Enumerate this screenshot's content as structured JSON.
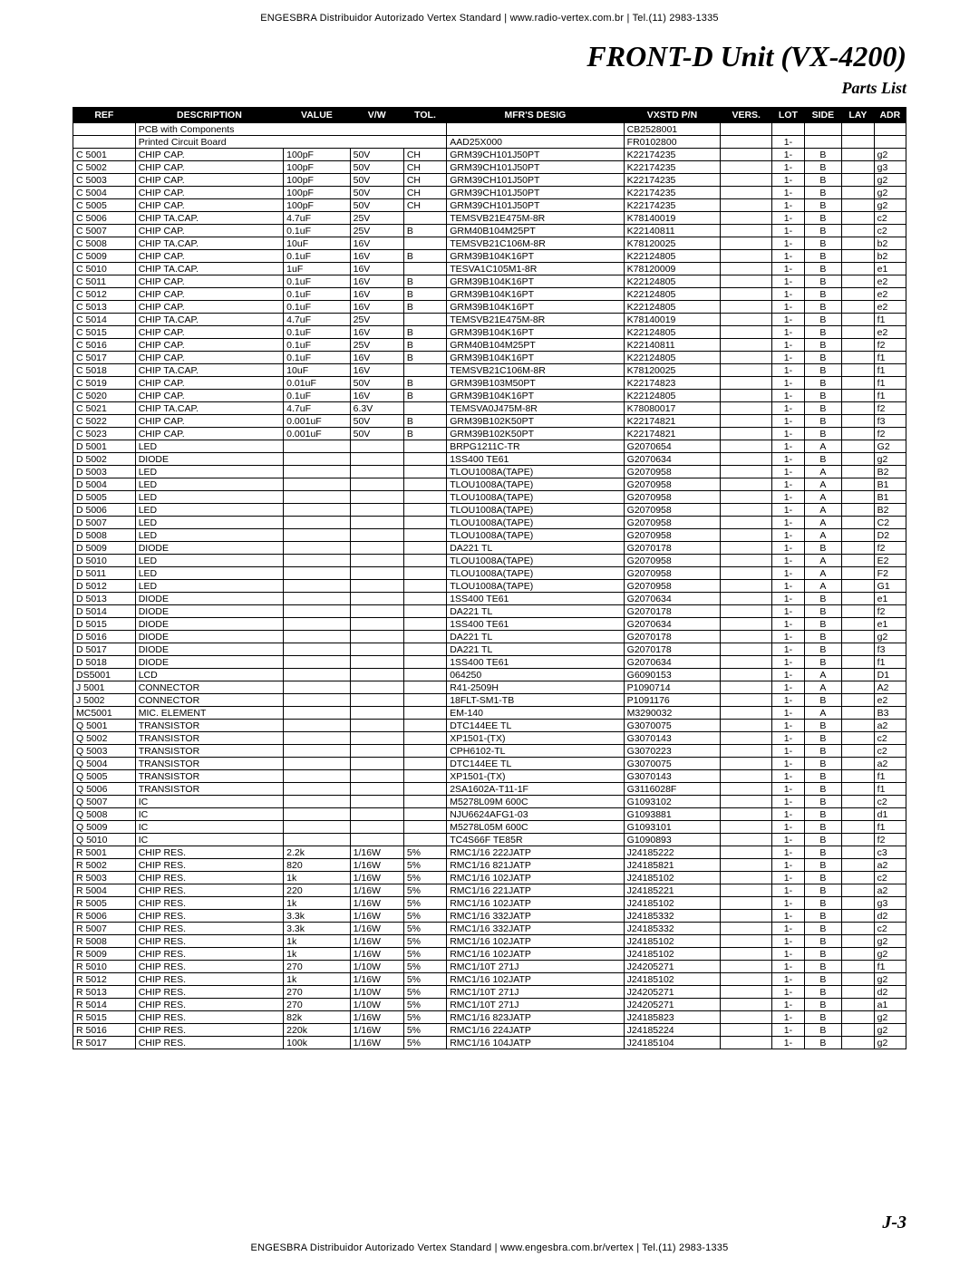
{
  "header_text": "ENGESBRA Distribuidor Autorizado Vertex Standard   |   www.radio-vertex.com.br   |   Tel.(11) 2983-1335",
  "footer_text": "ENGESBRA Distribuidor Autorizado Vertex Standard   |   www.engesbra.com.br/vertex   |   Tel.(11) 2983-1335",
  "title": "FRONT-D Unit (VX-4200)",
  "subtitle": "Parts List",
  "page_number": "J-3",
  "columns": [
    "REF",
    "DESCRIPTION",
    "VALUE",
    "V/W",
    "TOL.",
    "MFR'S DESIG",
    "VXSTD P/N",
    "VERS.",
    "LOT",
    "SIDE",
    "LAY",
    "ADR"
  ],
  "section1": {
    "desc": "PCB with Components",
    "pn": "CB2528001"
  },
  "section2": {
    "desc": "Printed Circuit Board",
    "mfr": "AAD25X000",
    "pn": "FR0102800",
    "lot": "1-"
  },
  "rows": [
    [
      "C 5001",
      "CHIP CAP.",
      "100pF",
      "50V",
      "CH",
      "GRM39CH101J50PT",
      "K22174235",
      "",
      "1-",
      "B",
      "",
      "g2"
    ],
    [
      "C 5002",
      "CHIP CAP.",
      "100pF",
      "50V",
      "CH",
      "GRM39CH101J50PT",
      "K22174235",
      "",
      "1-",
      "B",
      "",
      "g3"
    ],
    [
      "C 5003",
      "CHIP CAP.",
      "100pF",
      "50V",
      "CH",
      "GRM39CH101J50PT",
      "K22174235",
      "",
      "1-",
      "B",
      "",
      "g2"
    ],
    [
      "C 5004",
      "CHIP CAP.",
      "100pF",
      "50V",
      "CH",
      "GRM39CH101J50PT",
      "K22174235",
      "",
      "1-",
      "B",
      "",
      "g2"
    ],
    [
      "C 5005",
      "CHIP CAP.",
      "100pF",
      "50V",
      "CH",
      "GRM39CH101J50PT",
      "K22174235",
      "",
      "1-",
      "B",
      "",
      "g2"
    ],
    [
      "C 5006",
      "CHIP TA.CAP.",
      "4.7uF",
      "25V",
      "",
      "TEMSVB21E475M-8R",
      "K78140019",
      "",
      "1-",
      "B",
      "",
      "c2"
    ],
    [
      "C 5007",
      "CHIP CAP.",
      "0.1uF",
      "25V",
      "B",
      "GRM40B104M25PT",
      "K22140811",
      "",
      "1-",
      "B",
      "",
      "c2"
    ],
    [
      "C 5008",
      "CHIP TA.CAP.",
      "10uF",
      "16V",
      "",
      "TEMSVB21C106M-8R",
      "K78120025",
      "",
      "1-",
      "B",
      "",
      "b2"
    ],
    [
      "C 5009",
      "CHIP CAP.",
      "0.1uF",
      "16V",
      "B",
      "GRM39B104K16PT",
      "K22124805",
      "",
      "1-",
      "B",
      "",
      "b2"
    ],
    [
      "C 5010",
      "CHIP TA.CAP.",
      "1uF",
      "16V",
      "",
      "TESVA1C105M1-8R",
      "K78120009",
      "",
      "1-",
      "B",
      "",
      "e1"
    ],
    [
      "C 5011",
      "CHIP CAP.",
      "0.1uF",
      "16V",
      "B",
      "GRM39B104K16PT",
      "K22124805",
      "",
      "1-",
      "B",
      "",
      "e2"
    ],
    [
      "C 5012",
      "CHIP CAP.",
      "0.1uF",
      "16V",
      "B",
      "GRM39B104K16PT",
      "K22124805",
      "",
      "1-",
      "B",
      "",
      "e2"
    ],
    [
      "C 5013",
      "CHIP CAP.",
      "0.1uF",
      "16V",
      "B",
      "GRM39B104K16PT",
      "K22124805",
      "",
      "1-",
      "B",
      "",
      "e2"
    ],
    [
      "C 5014",
      "CHIP TA.CAP.",
      "4.7uF",
      "25V",
      "",
      "TEMSVB21E475M-8R",
      "K78140019",
      "",
      "1-",
      "B",
      "",
      "f1"
    ],
    [
      "C 5015",
      "CHIP CAP.",
      "0.1uF",
      "16V",
      "B",
      "GRM39B104K16PT",
      "K22124805",
      "",
      "1-",
      "B",
      "",
      "e2"
    ],
    [
      "C 5016",
      "CHIP CAP.",
      "0.1uF",
      "25V",
      "B",
      "GRM40B104M25PT",
      "K22140811",
      "",
      "1-",
      "B",
      "",
      "f2"
    ],
    [
      "C 5017",
      "CHIP CAP.",
      "0.1uF",
      "16V",
      "B",
      "GRM39B104K16PT",
      "K22124805",
      "",
      "1-",
      "B",
      "",
      "f1"
    ],
    [
      "C 5018",
      "CHIP TA.CAP.",
      "10uF",
      "16V",
      "",
      "TEMSVB21C106M-8R",
      "K78120025",
      "",
      "1-",
      "B",
      "",
      "f1"
    ],
    [
      "C 5019",
      "CHIP CAP.",
      "0.01uF",
      "50V",
      "B",
      "GRM39B103M50PT",
      "K22174823",
      "",
      "1-",
      "B",
      "",
      "f1"
    ],
    [
      "C 5020",
      "CHIP CAP.",
      "0.1uF",
      "16V",
      "B",
      "GRM39B104K16PT",
      "K22124805",
      "",
      "1-",
      "B",
      "",
      "f1"
    ],
    [
      "C 5021",
      "CHIP TA.CAP.",
      "4.7uF",
      "6.3V",
      "",
      "TEMSVA0J475M-8R",
      "K78080017",
      "",
      "1-",
      "B",
      "",
      "f2"
    ],
    [
      "C 5022",
      "CHIP CAP.",
      "0.001uF",
      "50V",
      "B",
      "GRM39B102K50PT",
      "K22174821",
      "",
      "1-",
      "B",
      "",
      "f3"
    ],
    [
      "C 5023",
      "CHIP CAP.",
      "0.001uF",
      "50V",
      "B",
      "GRM39B102K50PT",
      "K22174821",
      "",
      "1-",
      "B",
      "",
      "f2"
    ],
    [
      "D 5001",
      "LED",
      "",
      "",
      "",
      "BRPG1211C-TR",
      "G2070654",
      "",
      "1-",
      "A",
      "",
      "G2"
    ],
    [
      "D 5002",
      "DIODE",
      "",
      "",
      "",
      "1SS400 TE61",
      "G2070634",
      "",
      "1-",
      "B",
      "",
      "g2"
    ],
    [
      "D 5003",
      "LED",
      "",
      "",
      "",
      "TLOU1008A(TAPE)",
      "G2070958",
      "",
      "1-",
      "A",
      "",
      "B2"
    ],
    [
      "D 5004",
      "LED",
      "",
      "",
      "",
      "TLOU1008A(TAPE)",
      "G2070958",
      "",
      "1-",
      "A",
      "",
      "B1"
    ],
    [
      "D 5005",
      "LED",
      "",
      "",
      "",
      "TLOU1008A(TAPE)",
      "G2070958",
      "",
      "1-",
      "A",
      "",
      "B1"
    ],
    [
      "D 5006",
      "LED",
      "",
      "",
      "",
      "TLOU1008A(TAPE)",
      "G2070958",
      "",
      "1-",
      "A",
      "",
      "B2"
    ],
    [
      "D 5007",
      "LED",
      "",
      "",
      "",
      "TLOU1008A(TAPE)",
      "G2070958",
      "",
      "1-",
      "A",
      "",
      "C2"
    ],
    [
      "D 5008",
      "LED",
      "",
      "",
      "",
      "TLOU1008A(TAPE)",
      "G2070958",
      "",
      "1-",
      "A",
      "",
      "D2"
    ],
    [
      "D 5009",
      "DIODE",
      "",
      "",
      "",
      "DA221 TL",
      "G2070178",
      "",
      "1-",
      "B",
      "",
      "f2"
    ],
    [
      "D 5010",
      "LED",
      "",
      "",
      "",
      "TLOU1008A(TAPE)",
      "G2070958",
      "",
      "1-",
      "A",
      "",
      "E2"
    ],
    [
      "D 5011",
      "LED",
      "",
      "",
      "",
      "TLOU1008A(TAPE)",
      "G2070958",
      "",
      "1-",
      "A",
      "",
      "F2"
    ],
    [
      "D 5012",
      "LED",
      "",
      "",
      "",
      "TLOU1008A(TAPE)",
      "G2070958",
      "",
      "1-",
      "A",
      "",
      "G1"
    ],
    [
      "D 5013",
      "DIODE",
      "",
      "",
      "",
      "1SS400 TE61",
      "G2070634",
      "",
      "1-",
      "B",
      "",
      "e1"
    ],
    [
      "D 5014",
      "DIODE",
      "",
      "",
      "",
      "DA221 TL",
      "G2070178",
      "",
      "1-",
      "B",
      "",
      "f2"
    ],
    [
      "D 5015",
      "DIODE",
      "",
      "",
      "",
      "1SS400 TE61",
      "G2070634",
      "",
      "1-",
      "B",
      "",
      "e1"
    ],
    [
      "D 5016",
      "DIODE",
      "",
      "",
      "",
      "DA221 TL",
      "G2070178",
      "",
      "1-",
      "B",
      "",
      "g2"
    ],
    [
      "D 5017",
      "DIODE",
      "",
      "",
      "",
      "DA221 TL",
      "G2070178",
      "",
      "1-",
      "B",
      "",
      "f3"
    ],
    [
      "D 5018",
      "DIODE",
      "",
      "",
      "",
      "1SS400 TE61",
      "G2070634",
      "",
      "1-",
      "B",
      "",
      "f1"
    ],
    [
      "DS5001",
      "LCD",
      "",
      "",
      "",
      "064250",
      "G6090153",
      "",
      "1-",
      "A",
      "",
      "D1"
    ],
    [
      "J 5001",
      "CONNECTOR",
      "",
      "",
      "",
      "R41-2509H",
      "P1090714",
      "",
      "1-",
      "A",
      "",
      "A2"
    ],
    [
      "J 5002",
      "CONNECTOR",
      "",
      "",
      "",
      "18FLT-SM1-TB",
      "P1091176",
      "",
      "1-",
      "B",
      "",
      "e2"
    ],
    [
      "MC5001",
      "MIC. ELEMENT",
      "",
      "",
      "",
      "EM-140",
      "M3290032",
      "",
      "1-",
      "A",
      "",
      "B3"
    ],
    [
      "Q 5001",
      "TRANSISTOR",
      "",
      "",
      "",
      "DTC144EE TL",
      "G3070075",
      "",
      "1-",
      "B",
      "",
      "a2"
    ],
    [
      "Q 5002",
      "TRANSISTOR",
      "",
      "",
      "",
      "XP1501-(TX)",
      "G3070143",
      "",
      "1-",
      "B",
      "",
      "c2"
    ],
    [
      "Q 5003",
      "TRANSISTOR",
      "",
      "",
      "",
      "CPH6102-TL",
      "G3070223",
      "",
      "1-",
      "B",
      "",
      "c2"
    ],
    [
      "Q 5004",
      "TRANSISTOR",
      "",
      "",
      "",
      "DTC144EE TL",
      "G3070075",
      "",
      "1-",
      "B",
      "",
      "a2"
    ],
    [
      "Q 5005",
      "TRANSISTOR",
      "",
      "",
      "",
      "XP1501-(TX)",
      "G3070143",
      "",
      "1-",
      "B",
      "",
      "f1"
    ],
    [
      "Q 5006",
      "TRANSISTOR",
      "",
      "",
      "",
      "2SA1602A-T11-1F",
      "G3116028F",
      "",
      "1-",
      "B",
      "",
      "f1"
    ],
    [
      "Q 5007",
      "IC",
      "",
      "",
      "",
      "M5278L09M 600C",
      "G1093102",
      "",
      "1-",
      "B",
      "",
      "c2"
    ],
    [
      "Q 5008",
      "IC",
      "",
      "",
      "",
      "NJU6624AFG1-03",
      "G1093881",
      "",
      "1-",
      "B",
      "",
      "d1"
    ],
    [
      "Q 5009",
      "IC",
      "",
      "",
      "",
      "M5278L05M 600C",
      "G1093101",
      "",
      "1-",
      "B",
      "",
      "f1"
    ],
    [
      "Q 5010",
      "IC",
      "",
      "",
      "",
      "TC4S66F TE85R",
      "G1090893",
      "",
      "1-",
      "B",
      "",
      "f2"
    ],
    [
      "R 5001",
      "CHIP RES.",
      "2.2k",
      "1/16W",
      "5%",
      "RMC1/16 222JATP",
      "J24185222",
      "",
      "1-",
      "B",
      "",
      "c3"
    ],
    [
      "R 5002",
      "CHIP RES.",
      "820",
      "1/16W",
      "5%",
      "RMC1/16 821JATP",
      "J24185821",
      "",
      "1-",
      "B",
      "",
      "a2"
    ],
    [
      "R 5003",
      "CHIP RES.",
      "1k",
      "1/16W",
      "5%",
      "RMC1/16 102JATP",
      "J24185102",
      "",
      "1-",
      "B",
      "",
      "c2"
    ],
    [
      "R 5004",
      "CHIP RES.",
      "220",
      "1/16W",
      "5%",
      "RMC1/16 221JATP",
      "J24185221",
      "",
      "1-",
      "B",
      "",
      "a2"
    ],
    [
      "R 5005",
      "CHIP RES.",
      "1k",
      "1/16W",
      "5%",
      "RMC1/16 102JATP",
      "J24185102",
      "",
      "1-",
      "B",
      "",
      "g3"
    ],
    [
      "R 5006",
      "CHIP RES.",
      "3.3k",
      "1/16W",
      "5%",
      "RMC1/16 332JATP",
      "J24185332",
      "",
      "1-",
      "B",
      "",
      "d2"
    ],
    [
      "R 5007",
      "CHIP RES.",
      "3.3k",
      "1/16W",
      "5%",
      "RMC1/16 332JATP",
      "J24185332",
      "",
      "1-",
      "B",
      "",
      "c2"
    ],
    [
      "R 5008",
      "CHIP RES.",
      "1k",
      "1/16W",
      "5%",
      "RMC1/16 102JATP",
      "J24185102",
      "",
      "1-",
      "B",
      "",
      "g2"
    ],
    [
      "R 5009",
      "CHIP RES.",
      "1k",
      "1/16W",
      "5%",
      "RMC1/16 102JATP",
      "J24185102",
      "",
      "1-",
      "B",
      "",
      "g2"
    ],
    [
      "R 5010",
      "CHIP RES.",
      "270",
      "1/10W",
      "5%",
      "RMC1/10T 271J",
      "J24205271",
      "",
      "1-",
      "B",
      "",
      "f1"
    ],
    [
      "R 5012",
      "CHIP RES.",
      "1k",
      "1/16W",
      "5%",
      "RMC1/16 102JATP",
      "J24185102",
      "",
      "1-",
      "B",
      "",
      "g2"
    ],
    [
      "R 5013",
      "CHIP RES.",
      "270",
      "1/10W",
      "5%",
      "RMC1/10T 271J",
      "J24205271",
      "",
      "1-",
      "B",
      "",
      "d2"
    ],
    [
      "R 5014",
      "CHIP RES.",
      "270",
      "1/10W",
      "5%",
      "RMC1/10T 271J",
      "J24205271",
      "",
      "1-",
      "B",
      "",
      "a1"
    ],
    [
      "R 5015",
      "CHIP RES.",
      "82k",
      "1/16W",
      "5%",
      "RMC1/16 823JATP",
      "J24185823",
      "",
      "1-",
      "B",
      "",
      "g2"
    ],
    [
      "R 5016",
      "CHIP RES.",
      "220k",
      "1/16W",
      "5%",
      "RMC1/16 224JATP",
      "J24185224",
      "",
      "1-",
      "B",
      "",
      "g2"
    ],
    [
      "R 5017",
      "CHIP RES.",
      "100k",
      "1/16W",
      "5%",
      "RMC1/16 104JATP",
      "J24185104",
      "",
      "1-",
      "B",
      "",
      "g2"
    ]
  ]
}
